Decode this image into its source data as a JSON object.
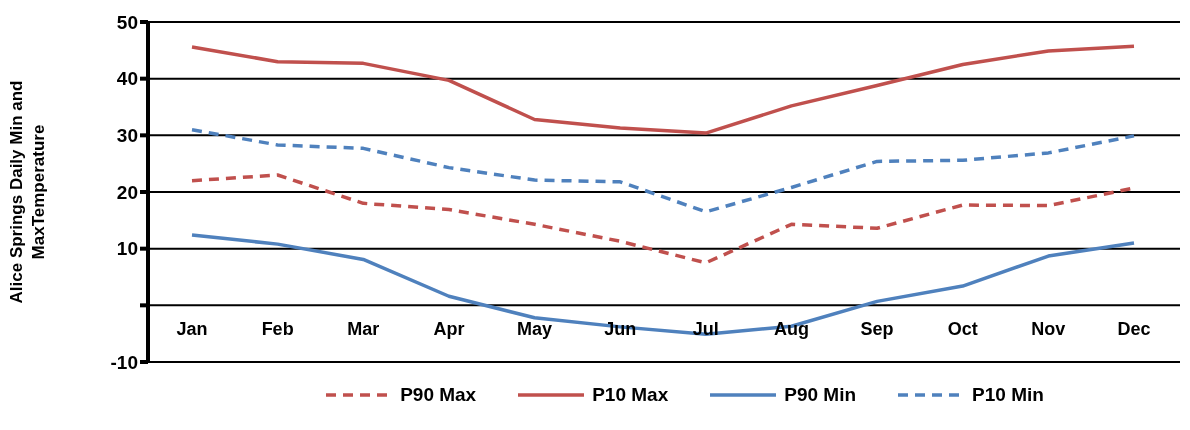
{
  "chart_data": {
    "type": "line",
    "ylabel": "Alice Springs Daily Min and MaxTemperature",
    "categories": [
      "Jan",
      "Feb",
      "Mar",
      "Apr",
      "May",
      "Jun",
      "Jul",
      "Aug",
      "Sep",
      "Oct",
      "Nov",
      "Dec"
    ],
    "series": [
      {
        "name": "P90 Max",
        "color": "#c0504d",
        "line_style": "dashed",
        "values": [
          22,
          23,
          18,
          16.9,
          14.3,
          11.3,
          7.5,
          14.3,
          13.6,
          17.7,
          17.6,
          20.7
        ]
      },
      {
        "name": "P10 Max",
        "color": "#c0504d",
        "line_style": "solid",
        "values": [
          45.6,
          43,
          42.7,
          39.7,
          32.8,
          31.3,
          30.4,
          35.2,
          38.8,
          42.5,
          44.9,
          45.7
        ]
      },
      {
        "name": "P90 Min",
        "color": "#4f81bd",
        "line_style": "solid",
        "values": [
          12.4,
          10.8,
          8.1,
          1.6,
          -2.2,
          -3.8,
          -5.1,
          -3.7,
          0.7,
          3.4,
          8.7,
          11
        ]
      },
      {
        "name": "P10 Min",
        "color": "#4f81bd",
        "line_style": "dashed",
        "values": [
          31,
          28.3,
          27.7,
          24.3,
          22.1,
          21.8,
          16.5,
          20.8,
          25.4,
          25.6,
          26.9,
          29.9
        ]
      }
    ],
    "ylim": [
      -10,
      50
    ],
    "yticks": [
      -10,
      {
        "value": 0,
        "label": null
      },
      10,
      20,
      30,
      40,
      50
    ],
    "grid": "y",
    "legend": "bottom",
    "marker": "none"
  }
}
